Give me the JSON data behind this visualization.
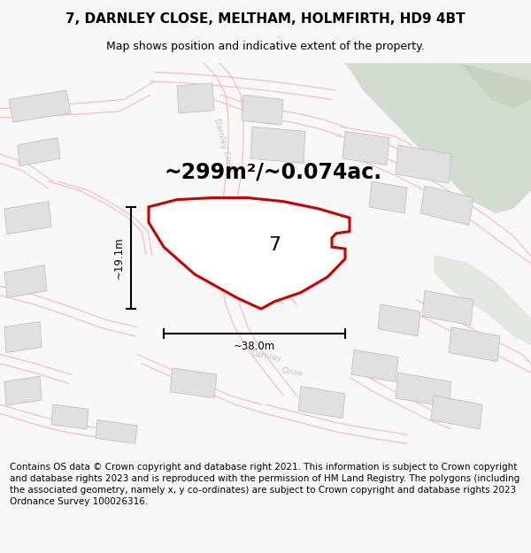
{
  "title": "7, DARNLEY CLOSE, MELTHAM, HOLMFIRTH, HD9 4BT",
  "subtitle": "Map shows position and indicative extent of the property.",
  "area_text": "~299m²/~0.074ac.",
  "width_label": "~38.0m",
  "height_label": "~19.1m",
  "number_label": "7",
  "footer_text": "Contains OS data © Crown copyright and database right 2021. This information is subject to Crown copyright and database rights 2023 and is reproduced with the permission of HM Land Registry. The polygons (including the associated geometry, namely x, y co-ordinates) are subject to Crown copyright and database rights 2023 Ordnance Survey 100026316.",
  "road_color": "#f5b8b8",
  "road_outline_color": "#e8a0a0",
  "building_fill": "#e0e0e0",
  "building_edge": "#c0c0c0",
  "highlight_color": "#cc0000",
  "green_color": "#cdd9c8",
  "green_color2": "#bfccba",
  "label_gray": "#c0c0c0",
  "title_fontsize": 11,
  "subtitle_fontsize": 9,
  "area_fontsize": 17,
  "number_fontsize": 16,
  "footer_fontsize": 7.5,
  "map_bg": "#ffffff",
  "fig_bg": "#f8f8f8"
}
